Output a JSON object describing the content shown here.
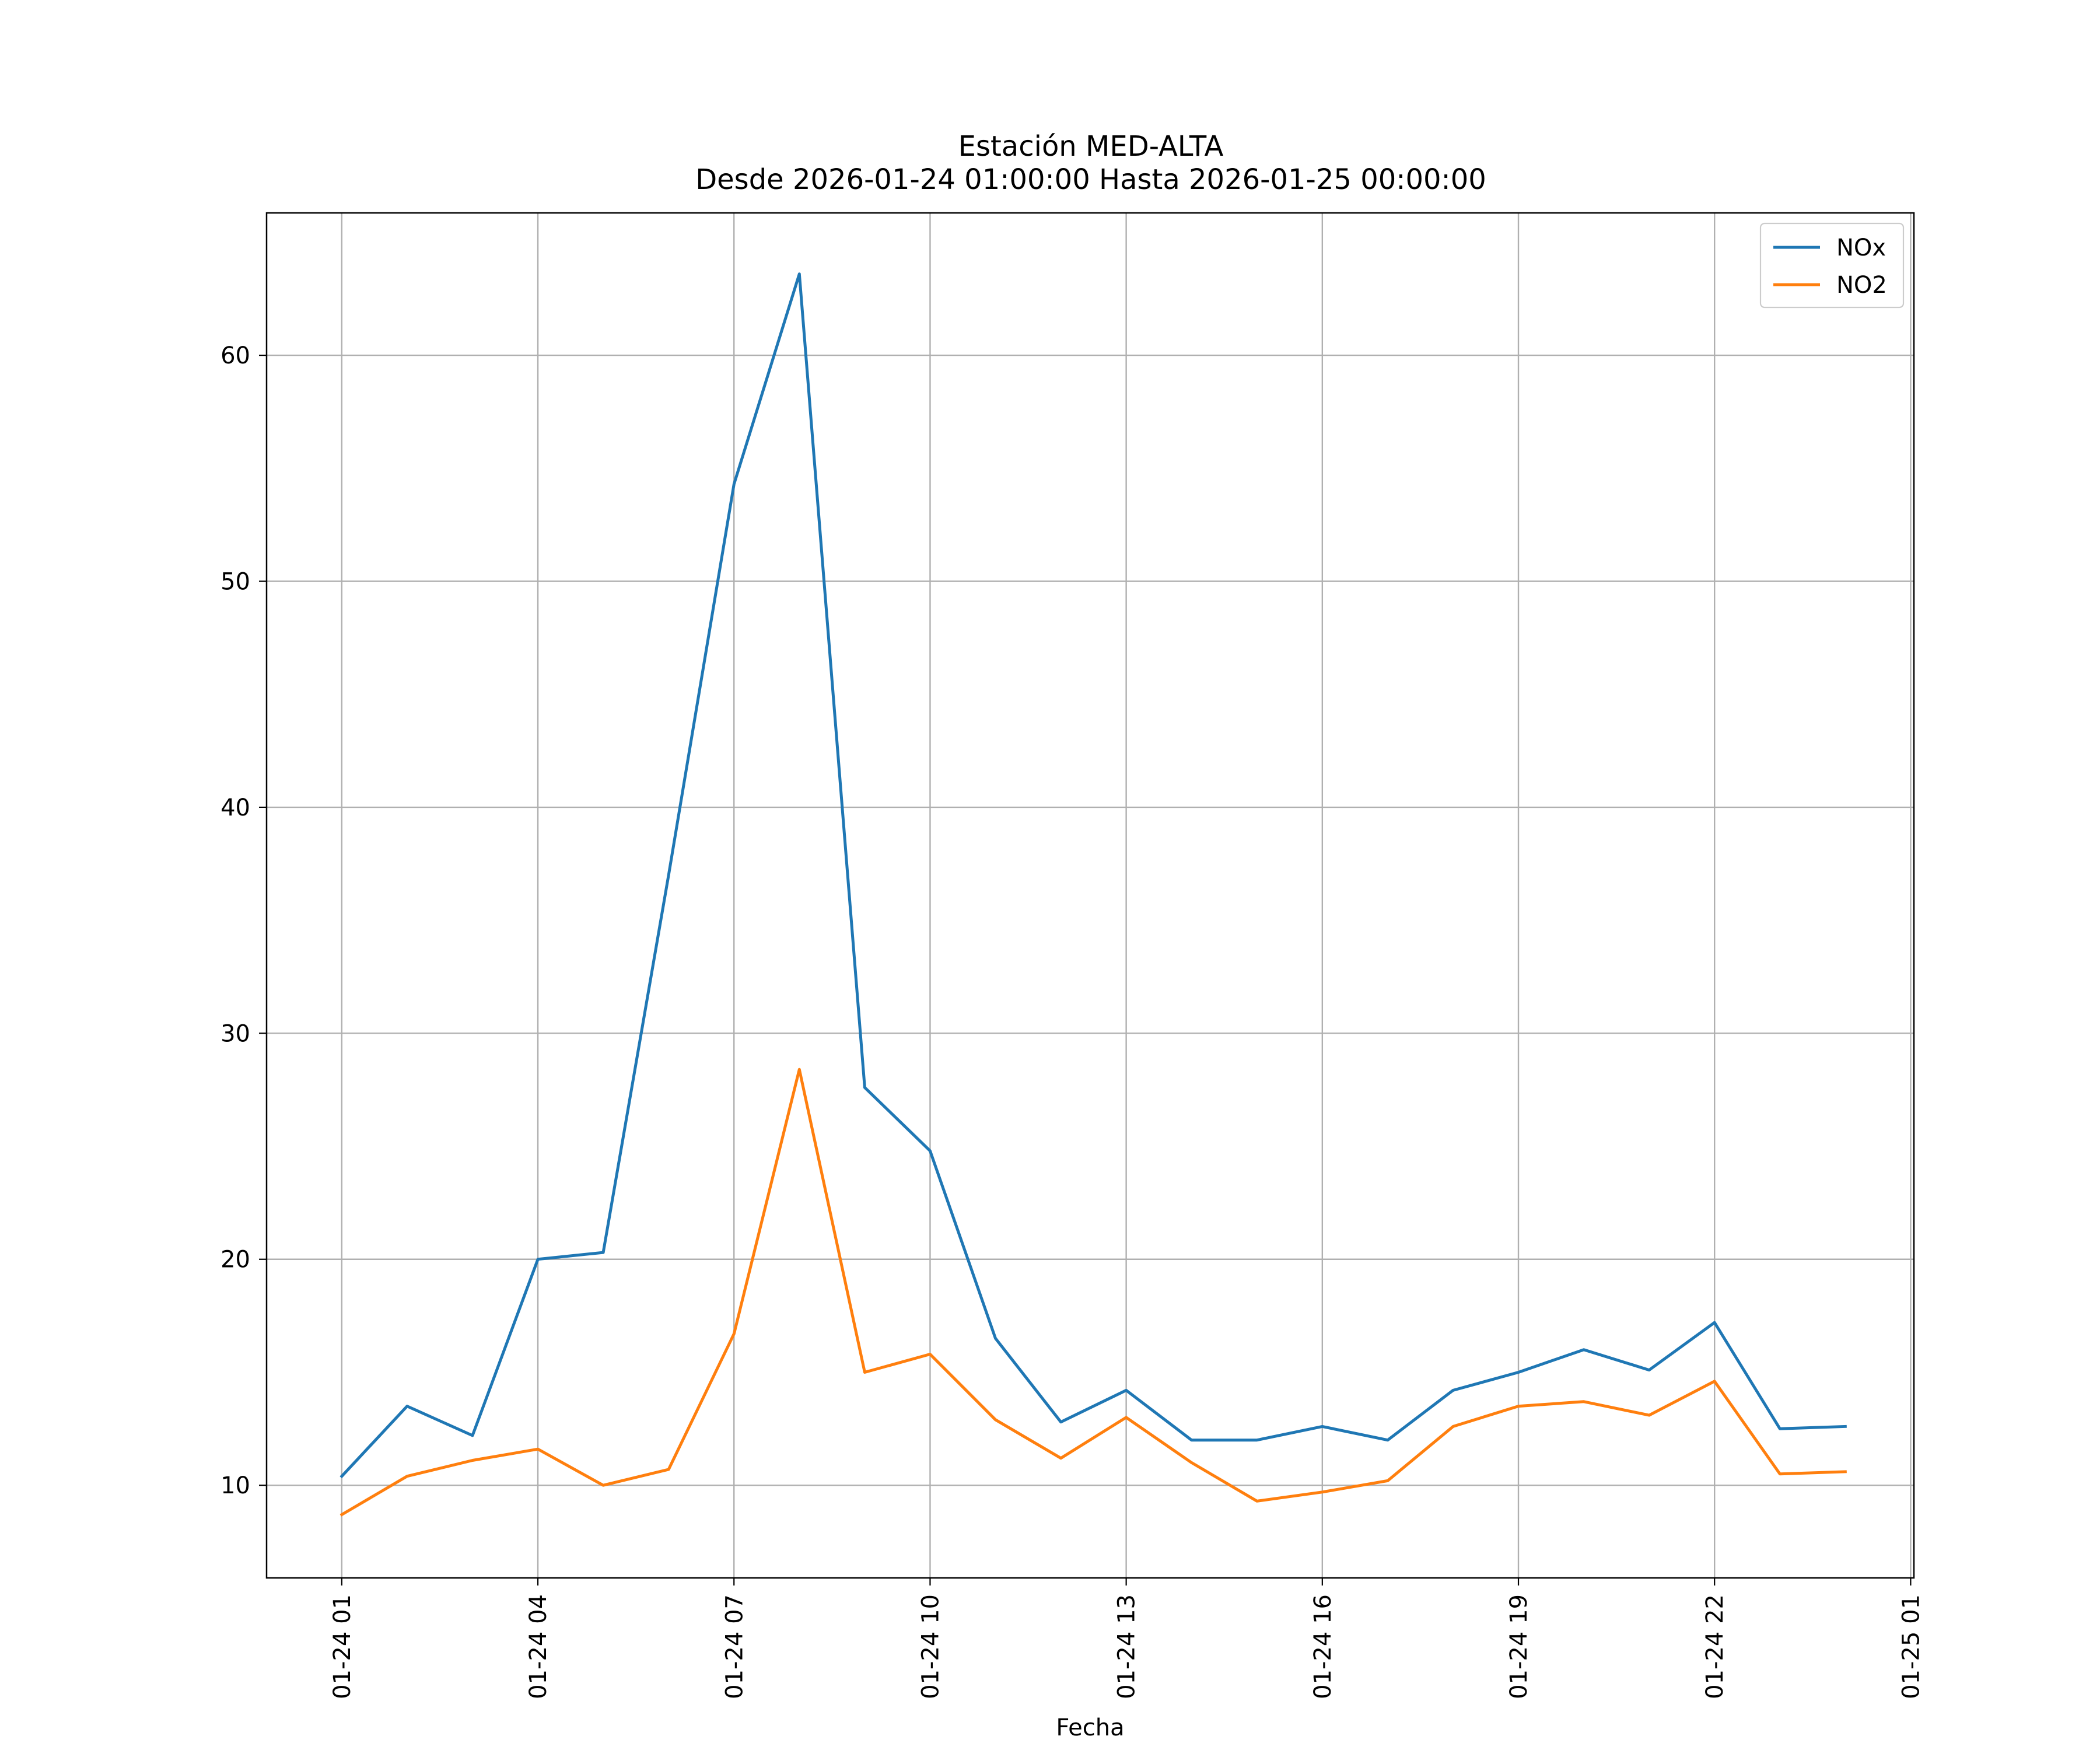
{
  "chart_data": {
    "type": "line",
    "title_line1": "Estación MED-ALTA",
    "title_line2": "Desde 2026-01-24 01:00:00 Hasta 2026-01-25 00:00:00",
    "xlabel": "Fecha",
    "ylabel": "",
    "grid": true,
    "legend_position": "top-right",
    "x": [
      1,
      2,
      3,
      4,
      5,
      6,
      7,
      8,
      9,
      10,
      11,
      12,
      13,
      14,
      15,
      16,
      17,
      18,
      19,
      20,
      21,
      22,
      23,
      24
    ],
    "xlim": [
      -0.15,
      25.05
    ],
    "ylim": [
      5.9,
      66.3
    ],
    "x_ticks": [
      {
        "value": 1,
        "label": "01-24 01"
      },
      {
        "value": 4,
        "label": "01-24 04"
      },
      {
        "value": 7,
        "label": "01-24 07"
      },
      {
        "value": 10,
        "label": "01-24 10"
      },
      {
        "value": 13,
        "label": "01-24 13"
      },
      {
        "value": 16,
        "label": "01-24 16"
      },
      {
        "value": 19,
        "label": "01-24 19"
      },
      {
        "value": 22,
        "label": "01-24 22"
      },
      {
        "value": 25,
        "label": "01-25 01"
      }
    ],
    "y_ticks": [
      {
        "value": 10,
        "label": "10"
      },
      {
        "value": 20,
        "label": "20"
      },
      {
        "value": 30,
        "label": "30"
      },
      {
        "value": 40,
        "label": "40"
      },
      {
        "value": 50,
        "label": "50"
      },
      {
        "value": 60,
        "label": "60"
      }
    ],
    "series": [
      {
        "name": "NOx",
        "color": "#1f77b4",
        "values": [
          10.4,
          13.5,
          12.2,
          20.0,
          20.3,
          37.0,
          54.3,
          63.6,
          27.6,
          24.8,
          16.5,
          12.8,
          14.2,
          12.0,
          12.0,
          12.6,
          12.0,
          14.2,
          15.0,
          16.0,
          15.1,
          17.2,
          12.5,
          12.6
        ]
      },
      {
        "name": "NO2",
        "color": "#ff7f0e",
        "values": [
          8.7,
          10.4,
          11.1,
          11.6,
          10.0,
          10.7,
          16.7,
          28.4,
          15.0,
          15.8,
          12.9,
          11.2,
          13.0,
          11.0,
          9.3,
          9.7,
          10.2,
          12.6,
          13.5,
          13.7,
          13.1,
          14.6,
          10.5,
          10.6
        ]
      }
    ]
  }
}
